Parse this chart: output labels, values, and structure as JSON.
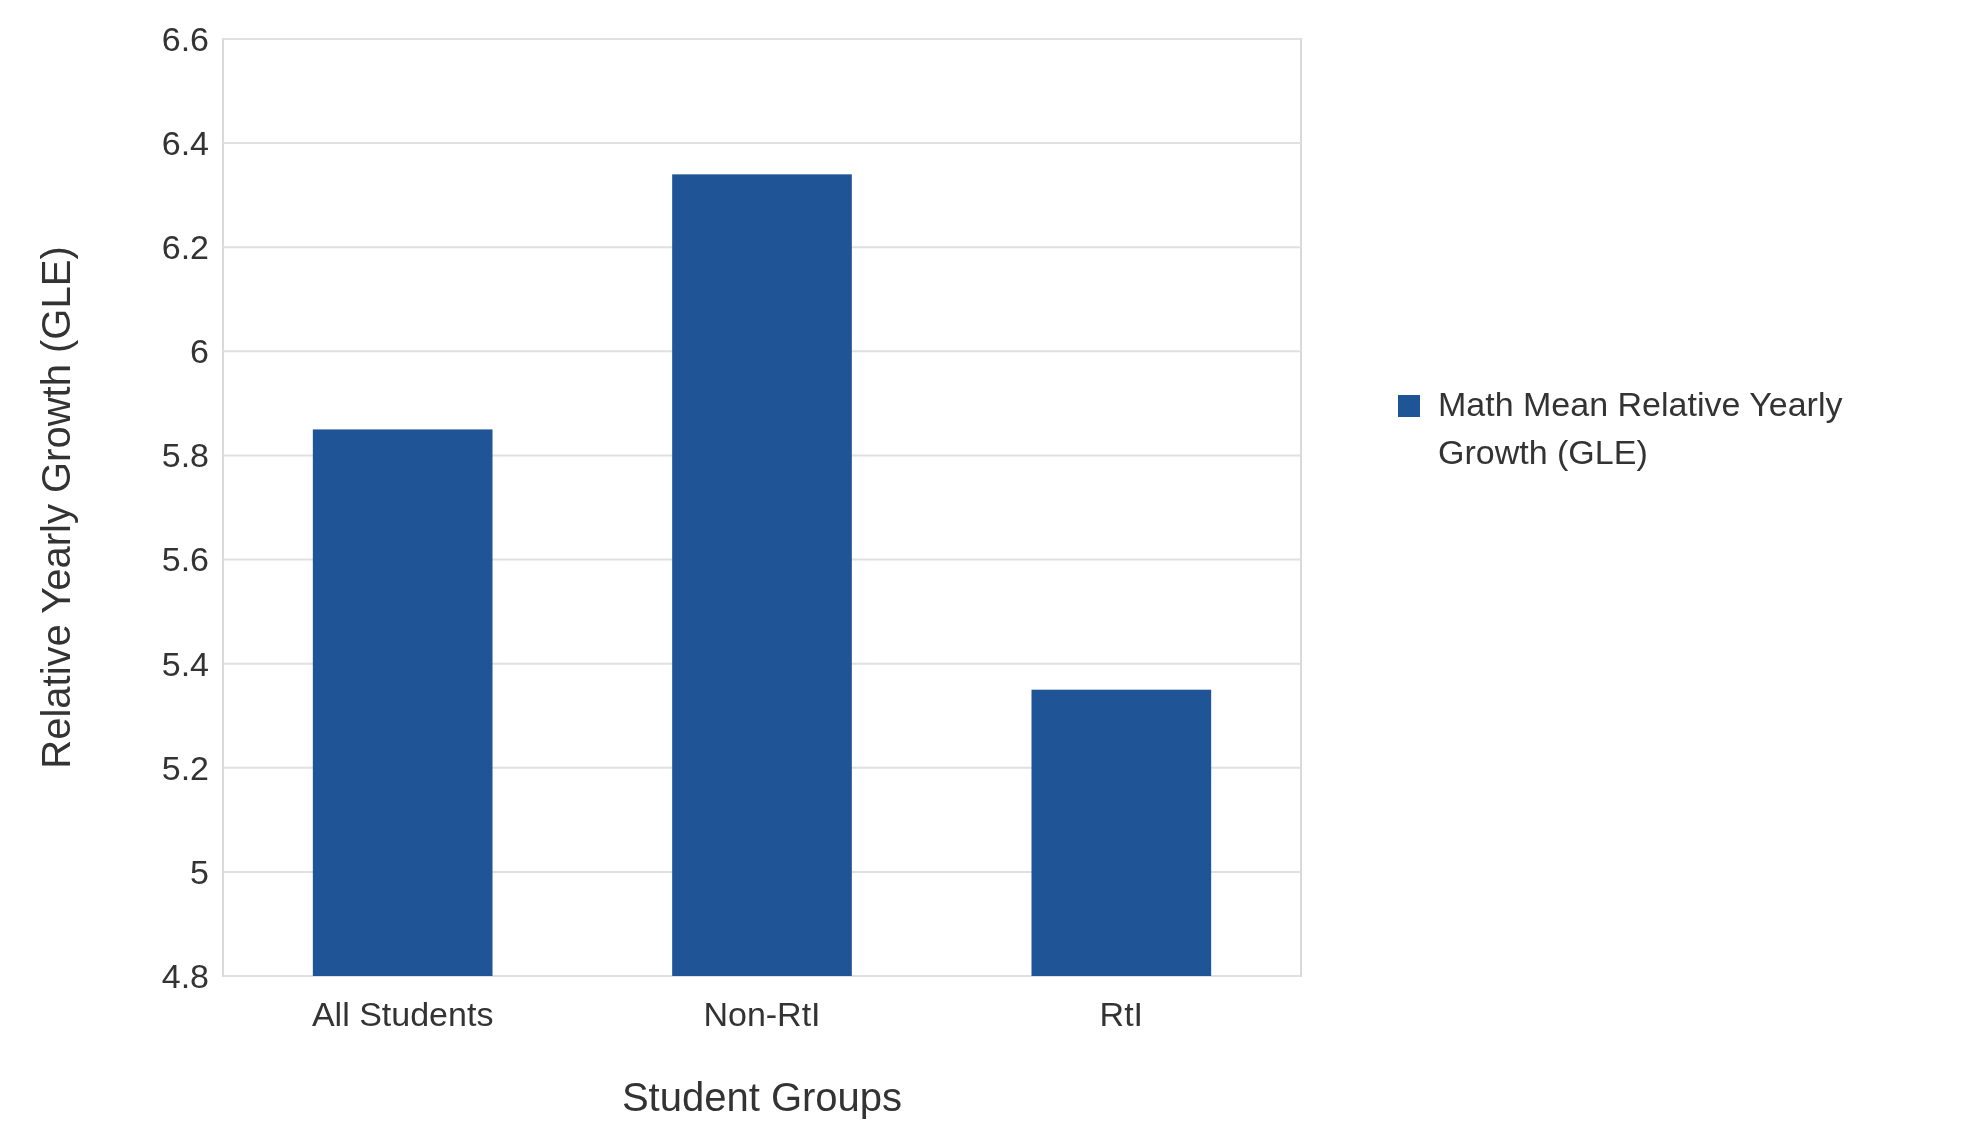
{
  "chart_data": {
    "type": "bar",
    "xlabel": "Student Groups",
    "ylabel": "Relative Yearly Growth (GLE)",
    "categories": [
      "All Students",
      "Non-RtI",
      "RtI"
    ],
    "series": [
      {
        "name": "Math Mean Relative Yearly Growth (GLE)",
        "color": "#1f5497",
        "values": [
          5.85,
          6.34,
          5.35
        ]
      }
    ],
    "ylim": [
      4.8,
      6.6
    ],
    "yticks": [
      4.8,
      5,
      5.2,
      5.4,
      5.6,
      5.8,
      6,
      6.2,
      6.4,
      6.6
    ],
    "grid": "y",
    "legend": "right"
  }
}
